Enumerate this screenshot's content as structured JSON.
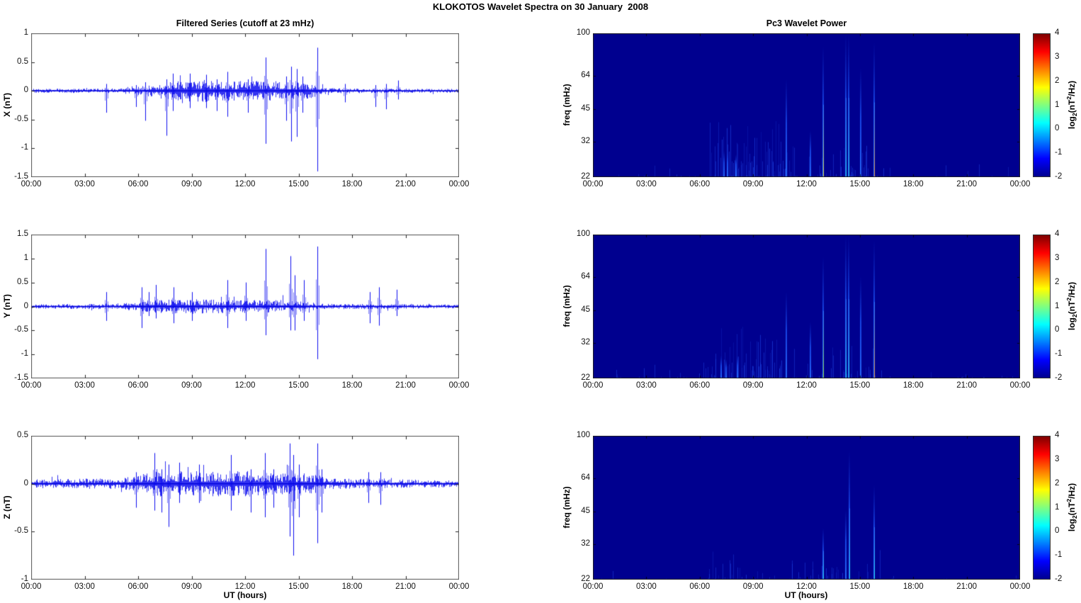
{
  "figure": {
    "title": "KLOKOTOS Wavelet Spectra on 30 January  2008"
  },
  "colors": {
    "series_line": "#0000EE",
    "heatmap_bg": "#00008F",
    "frame": "#555555",
    "tick_mark": "#222222",
    "jet_stops": [
      "#00008F",
      "#0000FF",
      "#00FFFF",
      "#FFFF00",
      "#FF0000",
      "#7F0000"
    ],
    "streak_palette": {
      "faint": "rgba(30,70,230,0.45)",
      "blue": "#2257EE",
      "cyan": "#25DCEE",
      "green": "#9ADF30",
      "yellow": "#E8E13A",
      "orange": "#F09030"
    }
  },
  "time_axis": {
    "label": "UT (hours)",
    "hours": [
      0,
      3,
      6,
      9,
      12,
      15,
      18,
      21,
      24
    ],
    "ticks": [
      "00:00",
      "03:00",
      "06:00",
      "09:00",
      "12:00",
      "15:00",
      "18:00",
      "21:00",
      "00:00"
    ]
  },
  "colorbar": {
    "range": [
      -2,
      4
    ],
    "ticks": [
      4,
      3,
      2,
      1,
      0,
      -1,
      -2
    ],
    "label_parts": [
      {
        "t": "log"
      },
      {
        "t": "2",
        "style": "sub"
      },
      {
        "t": "(nT"
      },
      {
        "t": "2",
        "style": "sup"
      },
      {
        "t": "/Hz)"
      }
    ]
  },
  "chart_data": [
    {
      "id": "filtered-series-x",
      "type": "line",
      "title": "Filtered Series (cutoff at 23 mHz)",
      "ylabel": "X (nT)",
      "ylim": [
        -1.5,
        1
      ],
      "yticks": [
        1,
        0.5,
        0,
        -0.5,
        -1,
        -1.5
      ],
      "xlim_hours": [
        0,
        24
      ],
      "noise_envelope": [
        [
          0,
          0.018
        ],
        [
          4,
          0.02
        ],
        [
          5.5,
          0.03
        ],
        [
          6.5,
          0.05
        ],
        [
          7.5,
          0.08
        ],
        [
          8.3,
          0.1
        ],
        [
          9.3,
          0.11
        ],
        [
          10.5,
          0.095
        ],
        [
          12,
          0.09
        ],
        [
          13.5,
          0.09
        ],
        [
          15,
          0.08
        ],
        [
          16.2,
          0.06
        ],
        [
          16.6,
          0.025
        ],
        [
          19,
          0.02
        ],
        [
          24,
          0.018
        ]
      ],
      "spikes": [
        [
          4.2,
          -0.38,
          0.12
        ],
        [
          5.9,
          -0.28,
          0.1
        ],
        [
          6.4,
          -0.52,
          0.15
        ],
        [
          7.6,
          -0.78,
          0.2
        ],
        [
          7.95,
          -0.35,
          0.3
        ],
        [
          8.9,
          -0.3,
          0.3
        ],
        [
          9.8,
          -0.3,
          0.28
        ],
        [
          10.4,
          -0.35,
          0.2
        ],
        [
          11.0,
          -0.45,
          0.33
        ],
        [
          12.15,
          -0.38,
          0.2
        ],
        [
          13.15,
          -0.92,
          0.58
        ],
        [
          14.3,
          -0.52,
          0.25
        ],
        [
          14.6,
          -0.88,
          0.42
        ],
        [
          14.9,
          -0.8,
          0.38
        ],
        [
          15.2,
          -0.38,
          0.25
        ],
        [
          16.05,
          -1.4,
          0.75
        ],
        [
          17.6,
          -0.2,
          0.12
        ],
        [
          19.3,
          -0.28,
          0.1
        ],
        [
          19.9,
          -0.32,
          0.12
        ],
        [
          20.6,
          -0.15,
          0.18
        ]
      ]
    },
    {
      "id": "filtered-series-y",
      "type": "line",
      "title": "",
      "ylabel": "Y (nT)",
      "ylim": [
        -1.5,
        1.5
      ],
      "yticks": [
        1.5,
        1,
        0.5,
        0,
        -0.5,
        -1,
        -1.5
      ],
      "xlim_hours": [
        0,
        24
      ],
      "noise_envelope": [
        [
          0,
          0.025
        ],
        [
          4,
          0.03
        ],
        [
          5.5,
          0.04
        ],
        [
          7,
          0.07
        ],
        [
          8,
          0.08
        ],
        [
          9.5,
          0.08
        ],
        [
          11,
          0.07
        ],
        [
          13,
          0.07
        ],
        [
          15,
          0.07
        ],
        [
          16.3,
          0.03
        ],
        [
          18.5,
          0.03
        ],
        [
          21,
          0.025
        ],
        [
          24,
          0.02
        ]
      ],
      "spikes": [
        [
          4.2,
          -0.3,
          0.3
        ],
        [
          6.2,
          -0.45,
          0.4
        ],
        [
          6.6,
          -0.2,
          0.3
        ],
        [
          7.0,
          -0.25,
          0.45
        ],
        [
          8.0,
          -0.35,
          0.4
        ],
        [
          9.0,
          -0.3,
          0.3
        ],
        [
          11.0,
          -0.45,
          0.55
        ],
        [
          12.05,
          -0.3,
          0.5
        ],
        [
          13.15,
          -0.6,
          1.2
        ],
        [
          14.55,
          -0.5,
          1.05
        ],
        [
          14.8,
          -0.5,
          0.65
        ],
        [
          15.3,
          -0.3,
          0.55
        ],
        [
          16.05,
          -1.1,
          1.25
        ],
        [
          19.0,
          -0.35,
          0.3
        ],
        [
          19.5,
          -0.4,
          0.4
        ],
        [
          20.5,
          -0.2,
          0.35
        ]
      ]
    },
    {
      "id": "filtered-series-z",
      "type": "line",
      "title": "",
      "ylabel": "Z (nT)",
      "ylim": [
        -1,
        0.5
      ],
      "yticks": [
        0.5,
        0,
        -0.5,
        -1
      ],
      "xlim_hours": [
        0,
        24
      ],
      "noise_envelope": [
        [
          0,
          0.025
        ],
        [
          5,
          0.03
        ],
        [
          6,
          0.05
        ],
        [
          7,
          0.07
        ],
        [
          9,
          0.07
        ],
        [
          12,
          0.07
        ],
        [
          14,
          0.06
        ],
        [
          16,
          0.055
        ],
        [
          16.5,
          0.03
        ],
        [
          19,
          0.025
        ],
        [
          24,
          0.02
        ]
      ],
      "spikes": [
        [
          5.9,
          -0.25,
          0.12
        ],
        [
          6.9,
          -0.28,
          0.32
        ],
        [
          7.3,
          -0.3,
          0.15
        ],
        [
          7.7,
          -0.45,
          0.2
        ],
        [
          8.3,
          -0.2,
          0.22
        ],
        [
          9.4,
          -0.2,
          0.2
        ],
        [
          11.2,
          -0.28,
          0.3
        ],
        [
          12.3,
          -0.3,
          0.15
        ],
        [
          13.1,
          -0.35,
          0.32
        ],
        [
          13.6,
          -0.25,
          0.15
        ],
        [
          14.5,
          -0.55,
          0.42
        ],
        [
          14.7,
          -0.75,
          0.3
        ],
        [
          15.0,
          -0.35,
          0.2
        ],
        [
          16.05,
          -0.62,
          0.42
        ],
        [
          16.3,
          -0.3,
          0.15
        ],
        [
          18.9,
          -0.2,
          0.12
        ],
        [
          19.6,
          -0.22,
          0.12
        ]
      ]
    },
    {
      "id": "wavelet-power-x",
      "type": "heatmap",
      "title": "Pc3 Wavelet Power",
      "ylabel": "freq (mHz)",
      "yscale": "log",
      "ylim": [
        22,
        100
      ],
      "yticks": [
        100,
        64,
        45,
        32,
        22
      ],
      "xlim_hours": [
        0,
        24
      ],
      "value_range": [
        -2,
        4
      ],
      "background_value": -2,
      "noise_bands": [
        {
          "h0": 6.6,
          "h1": 11.0,
          "density": 0.5,
          "max_frac": 0.2
        },
        {
          "h0": 11.0,
          "h1": 16.2,
          "density": 0.25,
          "max_frac": 0.12
        },
        {
          "h0": 0,
          "h1": 24,
          "density": 0.07,
          "max_frac": 0.05
        }
      ],
      "streaks": [
        {
          "h": 6.9,
          "top": 26,
          "c": "faint"
        },
        {
          "h": 7.15,
          "top": 27,
          "c": "faint"
        },
        {
          "h": 7.35,
          "top": 29,
          "c": "blue"
        },
        {
          "h": 7.55,
          "top": 29,
          "c": "blue"
        },
        {
          "h": 7.8,
          "top": 26,
          "c": "faint"
        },
        {
          "h": 8.05,
          "top": 28,
          "c": "blue"
        },
        {
          "h": 8.3,
          "top": 26,
          "c": "faint"
        },
        {
          "h": 8.6,
          "top": 25,
          "c": "faint"
        },
        {
          "h": 8.9,
          "top": 26,
          "c": "faint"
        },
        {
          "h": 9.2,
          "top": 25,
          "c": "faint"
        },
        {
          "h": 9.5,
          "top": 26,
          "c": "faint"
        },
        {
          "h": 9.8,
          "top": 25,
          "c": "faint"
        },
        {
          "h": 10.1,
          "top": 26,
          "c": "faint"
        },
        {
          "h": 10.4,
          "top": 25,
          "c": "faint"
        },
        {
          "h": 10.85,
          "top": 62,
          "c": "blue"
        },
        {
          "h": 11.3,
          "top": 30,
          "c": "faint"
        },
        {
          "h": 12.2,
          "top": 36,
          "c": "blue"
        },
        {
          "h": 12.95,
          "top": 88,
          "c": "yellow"
        },
        {
          "h": 13.5,
          "top": 28,
          "c": "faint"
        },
        {
          "h": 14.2,
          "top": 100,
          "c": "cyan"
        },
        {
          "h": 14.38,
          "top": 100,
          "c": "cyan"
        },
        {
          "h": 15.05,
          "top": 70,
          "c": "blue"
        },
        {
          "h": 15.82,
          "top": 92,
          "c": "orange"
        }
      ]
    },
    {
      "id": "wavelet-power-y",
      "type": "heatmap",
      "title": "",
      "ylabel": "freq (mHz)",
      "yscale": "log",
      "ylim": [
        22,
        100
      ],
      "yticks": [
        100,
        64,
        45,
        32,
        22
      ],
      "xlim_hours": [
        0,
        24
      ],
      "value_range": [
        -2,
        4
      ],
      "background_value": -2,
      "noise_bands": [
        {
          "h0": 6.2,
          "h1": 10.8,
          "density": 0.45,
          "max_frac": 0.18
        },
        {
          "h0": 10.8,
          "h1": 16.2,
          "density": 0.25,
          "max_frac": 0.12
        },
        {
          "h0": 0,
          "h1": 24,
          "density": 0.08,
          "max_frac": 0.05
        }
      ],
      "streaks": [
        {
          "h": 4.3,
          "top": 24,
          "c": "faint"
        },
        {
          "h": 6.2,
          "top": 26,
          "c": "faint"
        },
        {
          "h": 6.9,
          "top": 27,
          "c": "faint"
        },
        {
          "h": 7.2,
          "top": 28,
          "c": "blue"
        },
        {
          "h": 7.5,
          "top": 27,
          "c": "blue"
        },
        {
          "h": 7.8,
          "top": 26,
          "c": "faint"
        },
        {
          "h": 8.1,
          "top": 28,
          "c": "blue"
        },
        {
          "h": 8.5,
          "top": 26,
          "c": "faint"
        },
        {
          "h": 9.0,
          "top": 25,
          "c": "faint"
        },
        {
          "h": 9.4,
          "top": 26,
          "c": "faint"
        },
        {
          "h": 9.8,
          "top": 25,
          "c": "faint"
        },
        {
          "h": 10.2,
          "top": 26,
          "c": "faint"
        },
        {
          "h": 10.5,
          "top": 25,
          "c": "faint"
        },
        {
          "h": 10.85,
          "top": 55,
          "c": "blue"
        },
        {
          "h": 11.3,
          "top": 30,
          "c": "faint"
        },
        {
          "h": 12.2,
          "top": 40,
          "c": "blue"
        },
        {
          "h": 12.95,
          "top": 80,
          "c": "green"
        },
        {
          "h": 13.5,
          "top": 28,
          "c": "faint"
        },
        {
          "h": 14.2,
          "top": 100,
          "c": "cyan"
        },
        {
          "h": 14.38,
          "top": 100,
          "c": "cyan"
        },
        {
          "h": 15.05,
          "top": 65,
          "c": "blue"
        },
        {
          "h": 15.82,
          "top": 95,
          "c": "orange"
        }
      ]
    },
    {
      "id": "wavelet-power-z",
      "type": "heatmap",
      "title": "",
      "ylabel": "freq (mHz)",
      "yscale": "log",
      "ylim": [
        22,
        100
      ],
      "yticks": [
        100,
        64,
        45,
        32,
        22
      ],
      "xlim_hours": [
        0,
        24
      ],
      "value_range": [
        -2,
        4
      ],
      "background_value": -2,
      "noise_bands": [
        {
          "h0": 6.5,
          "h1": 9.5,
          "density": 0.3,
          "max_frac": 0.1
        },
        {
          "h0": 11,
          "h1": 16.2,
          "density": 0.15,
          "max_frac": 0.07
        },
        {
          "h0": 0,
          "h1": 24,
          "density": 0.05,
          "max_frac": 0.04
        }
      ],
      "streaks": [
        {
          "h": 6.9,
          "top": 25,
          "c": "faint"
        },
        {
          "h": 7.3,
          "top": 26,
          "c": "faint"
        },
        {
          "h": 7.7,
          "top": 27,
          "c": "faint"
        },
        {
          "h": 8.1,
          "top": 25,
          "c": "faint"
        },
        {
          "h": 11.2,
          "top": 26,
          "c": "faint"
        },
        {
          "h": 12.95,
          "top": 38,
          "c": "cyan"
        },
        {
          "h": 13.4,
          "top": 25,
          "c": "faint"
        },
        {
          "h": 14.2,
          "top": 46,
          "c": "blue"
        },
        {
          "h": 14.4,
          "top": 86,
          "c": "cyan"
        },
        {
          "h": 15.82,
          "top": 60,
          "c": "cyan"
        },
        {
          "h": 16.1,
          "top": 30,
          "c": "faint"
        }
      ]
    }
  ]
}
